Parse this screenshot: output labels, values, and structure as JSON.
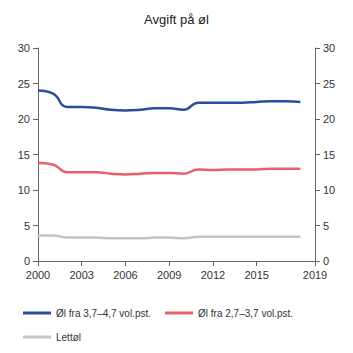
{
  "chart_data": {
    "type": "line",
    "title": "Avgift på øl",
    "x": [
      2000,
      2001,
      2002,
      2003,
      2004,
      2005,
      2006,
      2007,
      2008,
      2009,
      2010,
      2011,
      2012,
      2013,
      2014,
      2015,
      2016,
      2017,
      2018
    ],
    "series": [
      {
        "name": "Øl fra 3,7–4,7 vol.pst.",
        "color": "#2b4c9f",
        "values": [
          24.0,
          23.6,
          21.7,
          21.7,
          21.6,
          21.3,
          21.2,
          21.3,
          21.5,
          21.5,
          21.3,
          22.3,
          22.3,
          22.3,
          22.3,
          22.4,
          22.5,
          22.5,
          22.4
        ]
      },
      {
        "name": "Øl fra 2,7–3,7 vol.pst.",
        "color": "#e8606a",
        "values": [
          13.8,
          13.6,
          12.5,
          12.5,
          12.5,
          12.3,
          12.2,
          12.3,
          12.4,
          12.4,
          12.3,
          12.9,
          12.8,
          12.9,
          12.9,
          12.9,
          13.0,
          13.0,
          13.0
        ]
      },
      {
        "name": "Lettøl",
        "color": "#c4c4c4",
        "values": [
          3.6,
          3.6,
          3.3,
          3.3,
          3.3,
          3.2,
          3.2,
          3.2,
          3.3,
          3.3,
          3.2,
          3.4,
          3.4,
          3.4,
          3.4,
          3.4,
          3.4,
          3.4,
          3.4
        ]
      }
    ],
    "xlim": [
      2000,
      2019
    ],
    "xticks": [
      2000,
      2003,
      2006,
      2009,
      2012,
      2015,
      2019
    ],
    "ylim": [
      0,
      30
    ],
    "yticks": [
      0,
      5,
      10,
      15,
      20,
      25,
      30
    ],
    "y2lim": [
      0,
      30
    ],
    "y2ticks": [
      0,
      5,
      10,
      15,
      20,
      25,
      30
    ],
    "grid": false,
    "legend": "bottom"
  }
}
